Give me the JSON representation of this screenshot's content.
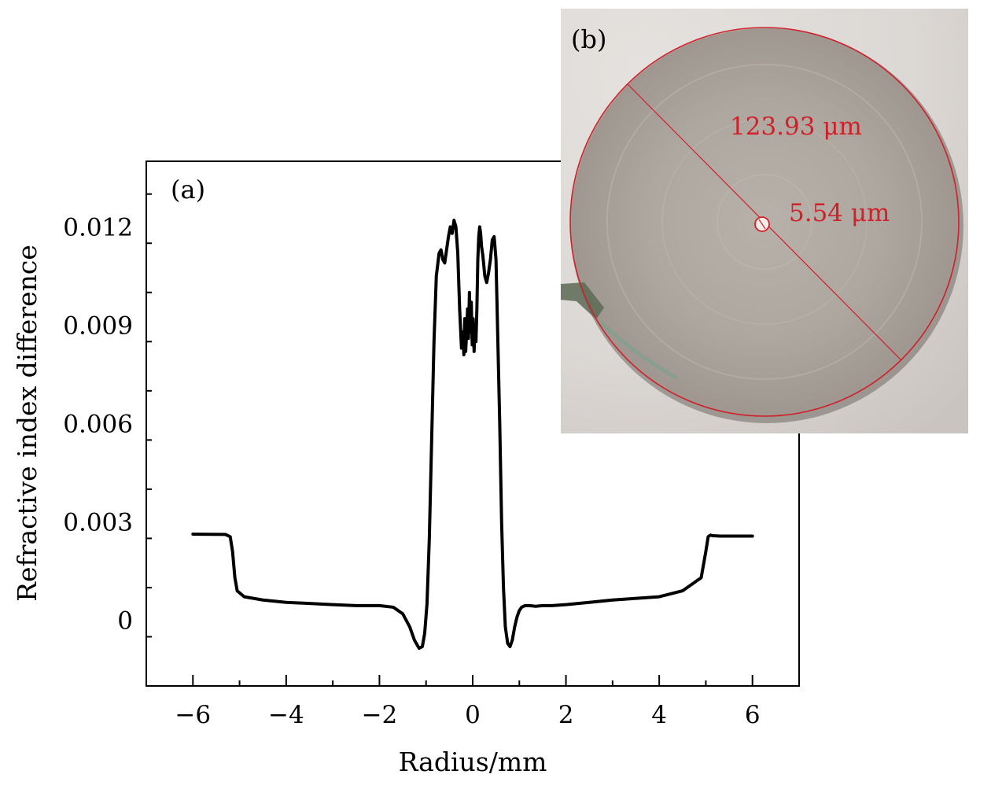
{
  "chart_data": {
    "type": "line",
    "panel_label": "(a)",
    "xlabel": "Radius/mm",
    "ylabel": "Refractive index difference",
    "xlim": [
      -7,
      7
    ],
    "ylim": [
      -0.002,
      0.014
    ],
    "xticks": [
      -6,
      -4,
      -2,
      0,
      2,
      4,
      6
    ],
    "xtick_labels": [
      "−6",
      "−4",
      "−2",
      "0",
      "2",
      "4",
      "6"
    ],
    "yticks": [
      0,
      0.003,
      0.006,
      0.009,
      0.012
    ],
    "ytick_labels": [
      "0",
      "0.003",
      "0.006",
      "0.009",
      "0.012"
    ],
    "grid": false,
    "series": [
      {
        "color": "#000000",
        "x": [
          -6.0,
          -5.3,
          -5.2,
          -5.15,
          -5.1,
          -5.05,
          -4.9,
          -4.5,
          -4.0,
          -3.0,
          -2.5,
          -2.0,
          -1.7,
          -1.5,
          -1.35,
          -1.25,
          -1.15,
          -1.08,
          -1.03,
          -0.98,
          -0.93,
          -0.88,
          -0.83,
          -0.78,
          -0.72,
          -0.68,
          -0.64,
          -0.6,
          -0.56,
          -0.52,
          -0.48,
          -0.44,
          -0.4,
          -0.36,
          -0.32,
          -0.28,
          -0.24,
          -0.21,
          -0.19,
          -0.17,
          -0.15,
          -0.13,
          -0.11,
          -0.09,
          -0.07,
          -0.05,
          -0.03,
          -0.01,
          0.01,
          0.03,
          0.05,
          0.07,
          0.09,
          0.11,
          0.13,
          0.15,
          0.17,
          0.19,
          0.22,
          0.26,
          0.3,
          0.34,
          0.38,
          0.42,
          0.46,
          0.5,
          0.54,
          0.58,
          0.62,
          0.66,
          0.7,
          0.75,
          0.8,
          0.85,
          0.9,
          0.95,
          1.0,
          1.05,
          1.12,
          1.22,
          1.35,
          1.5,
          1.7,
          2.0,
          2.5,
          3.0,
          4.0,
          4.5,
          4.9,
          5.0,
          5.05,
          5.1,
          5.15,
          5.2,
          5.3,
          6.0
        ],
        "y": [
          0.00263,
          0.00262,
          0.00255,
          0.0021,
          0.0013,
          0.0009,
          0.00072,
          0.00062,
          0.00055,
          0.00048,
          0.00045,
          0.00045,
          0.0004,
          0.0002,
          -0.0002,
          -0.0006,
          -0.00085,
          -0.0008,
          -0.0004,
          0.0005,
          0.0025,
          0.0055,
          0.0085,
          0.0105,
          0.0112,
          0.0113,
          0.011,
          0.0109,
          0.0113,
          0.0117,
          0.012,
          0.0118,
          0.0122,
          0.012,
          0.0112,
          0.0095,
          0.0083,
          0.0088,
          0.0081,
          0.0092,
          0.0082,
          0.0088,
          0.0095,
          0.0086,
          0.01,
          0.0088,
          0.0097,
          0.0084,
          0.0092,
          0.0082,
          0.009,
          0.0085,
          0.0095,
          0.011,
          0.0117,
          0.012,
          0.0118,
          0.0114,
          0.0111,
          0.0105,
          0.0103,
          0.0106,
          0.011,
          0.0116,
          0.0117,
          0.011,
          0.0085,
          0.006,
          0.003,
          0.001,
          -0.0002,
          -0.0007,
          -0.0008,
          -0.0006,
          -0.0002,
          0.0001,
          0.0003,
          0.0004,
          0.00045,
          0.00045,
          0.00043,
          0.00045,
          0.00045,
          0.00048,
          0.00055,
          0.00062,
          0.00072,
          0.0009,
          0.0013,
          0.0021,
          0.00255,
          0.0026,
          0.00258,
          0.00258,
          0.00257,
          0.00257
        ]
      }
    ]
  },
  "inset": {
    "panel_label": "(b)",
    "cladding_diameter": "123.93 μm",
    "core_diameter": "5.54 μm",
    "annotation_color": "#d0202a"
  }
}
